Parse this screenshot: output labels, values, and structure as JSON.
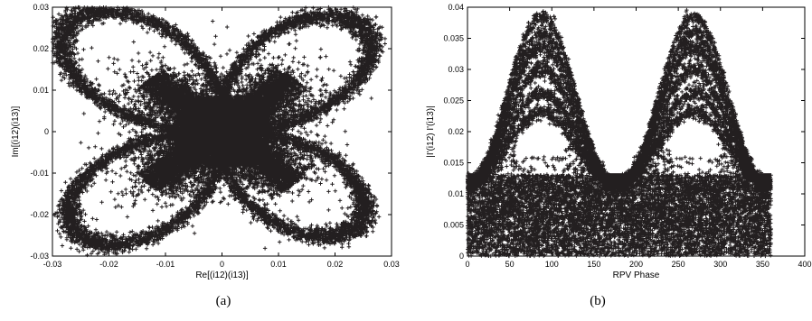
{
  "chart_data": [
    {
      "type": "scatter",
      "xlabel": "Re[(i12)(i13)]",
      "ylabel": "Im[(i12)(i13)]",
      "xlim": [
        -0.03,
        0.03
      ],
      "ylim": [
        -0.03,
        0.03
      ],
      "xticks": [
        -0.03,
        -0.02,
        -0.01,
        0,
        0.01,
        0.02,
        0.03
      ],
      "yticks": [
        -0.03,
        -0.02,
        -0.01,
        0,
        0.01,
        0.02,
        0.03
      ],
      "xtick_labels": [
        "-0.03",
        "-0.02",
        "-0.01",
        "0",
        "0.01",
        "0.02",
        "0.03"
      ],
      "ytick_labels": [
        "-0.03",
        "-0.02",
        "-0.01",
        "0",
        "0.01",
        "0.02",
        "0.03"
      ],
      "marker": "+",
      "marker_color": "#231f20",
      "grid": false,
      "legend": false,
      "shape": "four-lobed symmetric loops centered at origin with dense central cross",
      "lobe_tips": [
        [
          -0.026,
          0.027
        ],
        [
          0.024,
          0.026
        ],
        [
          -0.025,
          -0.025
        ],
        [
          0.023,
          -0.023
        ]
      ],
      "extent": {
        "x": [
          -0.029,
          0.027
        ],
        "y": [
          -0.029,
          0.029
        ]
      }
    },
    {
      "type": "scatter",
      "xlabel": "RPV Phase",
      "ylabel": "|I'(i12) I'(i13)|",
      "xlim": [
        0,
        400
      ],
      "ylim": [
        0,
        0.04
      ],
      "xticks": [
        0,
        50,
        100,
        150,
        200,
        250,
        300,
        350,
        400
      ],
      "yticks": [
        0,
        0.005,
        0.01,
        0.015,
        0.02,
        0.025,
        0.03,
        0.035,
        0.04
      ],
      "xtick_labels": [
        "0",
        "50",
        "100",
        "150",
        "200",
        "250",
        "300",
        "350",
        "400"
      ],
      "ytick_labels": [
        "0",
        "0.005",
        "0.01",
        "0.015",
        "0.02",
        "0.025",
        "0.03",
        "0.035",
        "0.04"
      ],
      "marker": "+",
      "marker_color": "#231f20",
      "grid": false,
      "legend": false,
      "x_extent": [
        0,
        360
      ],
      "baseline_band_max": 0.013,
      "peaks": [
        {
          "x": 88,
          "y": 0.0385
        },
        {
          "x": 268,
          "y": 0.0385
        }
      ],
      "minima_between_peaks": [
        {
          "x": 0,
          "y": 0.0115
        },
        {
          "x": 178,
          "y": 0.0115
        },
        {
          "x": 358,
          "y": 0.0115
        }
      ]
    }
  ],
  "captions": {
    "a": "(a)",
    "b": "(b)"
  }
}
